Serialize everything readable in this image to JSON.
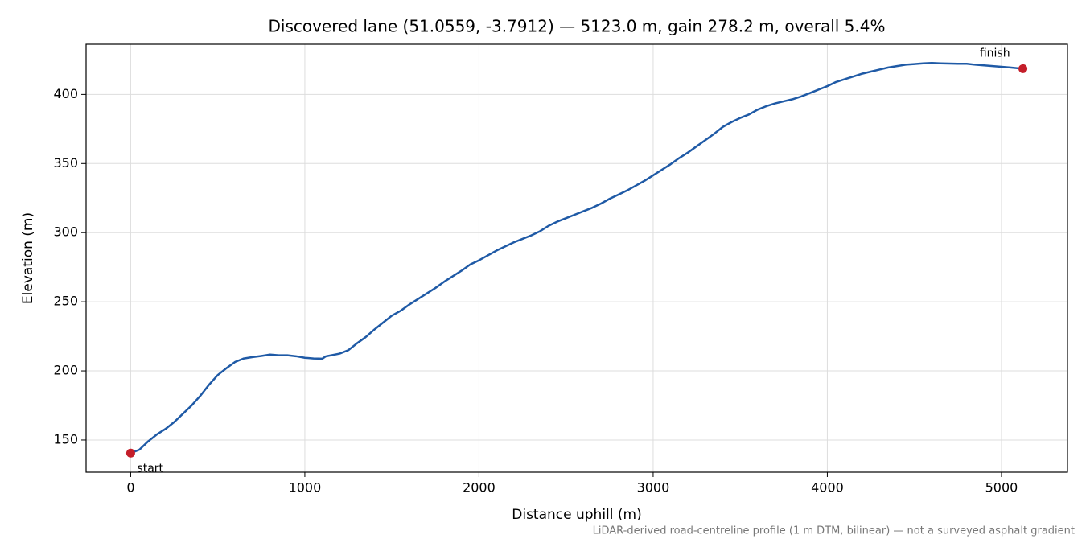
{
  "chart_data": {
    "type": "line",
    "title": "Discovered lane (51.0559, -3.7912) — 5123.0 m, gain 278.2 m, overall 5.4%",
    "xlabel": "Distance uphill (m)",
    "ylabel": "Elevation (m)",
    "footnote": "LiDAR-derived road-centreline profile (1 m DTM, bilinear) — not a surveyed asphalt gradient",
    "x": [
      0,
      50,
      100,
      150,
      200,
      250,
      300,
      350,
      400,
      450,
      500,
      550,
      600,
      650,
      700,
      750,
      800,
      850,
      900,
      950,
      1000,
      1050,
      1100,
      1120,
      1200,
      1250,
      1300,
      1350,
      1400,
      1450,
      1500,
      1550,
      1600,
      1650,
      1700,
      1750,
      1800,
      1850,
      1900,
      1950,
      2000,
      2050,
      2100,
      2150,
      2200,
      2250,
      2300,
      2350,
      2400,
      2450,
      2500,
      2550,
      2600,
      2650,
      2700,
      2750,
      2800,
      2850,
      2900,
      2950,
      3000,
      3050,
      3100,
      3150,
      3200,
      3250,
      3300,
      3350,
      3400,
      3450,
      3500,
      3550,
      3600,
      3650,
      3700,
      3750,
      3800,
      3850,
      3900,
      3950,
      4000,
      4050,
      4100,
      4150,
      4200,
      4250,
      4300,
      4350,
      4400,
      4450,
      4500,
      4550,
      4600,
      4650,
      4700,
      4750,
      4800,
      4850,
      4900,
      4950,
      5000,
      5050,
      5123
    ],
    "series": [
      {
        "name": "Elevation",
        "color": "#1f5aa6",
        "values": [
          140.5,
          143,
          149,
          154,
          158,
          163,
          169,
          175,
          182,
          190,
          197,
          202,
          206.5,
          209,
          210,
          210.8,
          211.8,
          211.3,
          211.3,
          210.6,
          209.5,
          209,
          208.8,
          210.5,
          212.5,
          215,
          220,
          224.5,
          230,
          235,
          240,
          243.5,
          248,
          252,
          256,
          260,
          264.5,
          268.5,
          272.5,
          277,
          280,
          283.5,
          287,
          290,
          293,
          295.5,
          298,
          301,
          305,
          308,
          310.5,
          313,
          315.5,
          318,
          321,
          324.5,
          327.5,
          330.5,
          334,
          337.5,
          341.5,
          345.5,
          349.5,
          354,
          358,
          362.5,
          367,
          371.5,
          376.5,
          380,
          383,
          385.5,
          389,
          391.5,
          393.5,
          395,
          396.5,
          398.5,
          401,
          403.5,
          406,
          409,
          411,
          413,
          415,
          416.5,
          418,
          419.5,
          420.5,
          421.5,
          422,
          422.5,
          422.8,
          422.5,
          422.3,
          422.2,
          422.2,
          421.5,
          421,
          420.5,
          420,
          419.5,
          418.6
        ]
      }
    ],
    "markers": {
      "x": [
        0,
        5123
      ],
      "values": [
        140.5,
        418.6
      ],
      "labels": [
        "start",
        "finish"
      ],
      "color": "#c41e2a"
    },
    "xlim": [
      -256,
      5379
    ],
    "ylim": [
      126.7,
      436.3
    ],
    "xticks": [
      0,
      1000,
      2000,
      3000,
      4000,
      5000
    ],
    "yticks": [
      150,
      200,
      250,
      300,
      350,
      400
    ],
    "grid": true
  }
}
